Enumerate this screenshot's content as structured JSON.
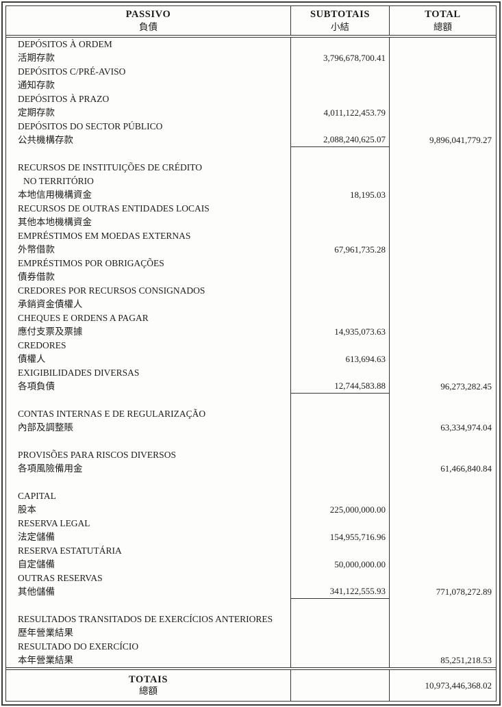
{
  "header": {
    "passivo_pt": "PASSIVO",
    "passivo_zh": "負債",
    "subtotais_pt": "SUBTOTAIS",
    "subtotais_zh": "小結",
    "total_pt": "TOTAL",
    "total_zh": "總額"
  },
  "rows": [
    {
      "label": "DEPÓSITOS À ORDEM"
    },
    {
      "label": "活期存款",
      "subtotal": "3,796,678,700.41"
    },
    {
      "label": "DEPÓSITOS C/PRÉ-AVISO"
    },
    {
      "label": "通知存款"
    },
    {
      "label": "DEPÓSITOS À PRAZO"
    },
    {
      "label": "定期存款",
      "subtotal": "4,011,122,453.79"
    },
    {
      "label": "DEPÓSITOS DO SECTOR PÚBLICO"
    },
    {
      "label": "公共機構存款",
      "subtotal": "2,088,240,625.07",
      "total": "9,896,041,779.27",
      "rule": true
    },
    {
      "spacer": true
    },
    {
      "label": "RECURSOS DE INSTITUIÇÕES DE CRÉDITO"
    },
    {
      "label": "NO TERRITÓRIO",
      "indent": true
    },
    {
      "label": "本地信用機構資金",
      "subtotal": "18,195.03"
    },
    {
      "label": "RECURSOS DE OUTRAS ENTIDADES LOCAIS"
    },
    {
      "label": "其他本地機構資金"
    },
    {
      "label": "EMPRÉSTIMOS EM MOEDAS EXTERNAS"
    },
    {
      "label": "外幣借款",
      "subtotal": "67,961,735.28"
    },
    {
      "label": "EMPRÉSTIMOS POR OBRIGAÇÕES"
    },
    {
      "label": "債券借款"
    },
    {
      "label": "CREDORES POR RECURSOS CONSIGNADOS"
    },
    {
      "label": "承銷資金債權人"
    },
    {
      "label": "CHEQUES E ORDENS A PAGAR"
    },
    {
      "label": "應付支票及票據",
      "subtotal": "14,935,073.63"
    },
    {
      "label": "CREDORES"
    },
    {
      "label": "債權人",
      "subtotal": "613,694.63"
    },
    {
      "label": "EXIGIBILIDADES DIVERSAS"
    },
    {
      "label": "各項負債",
      "subtotal": "12,744,583.88",
      "total": "96,273,282.45",
      "rule": true
    },
    {
      "spacer": true
    },
    {
      "label": "CONTAS INTERNAS E DE REGULARIZAÇÃO"
    },
    {
      "label": "內部及調整賬",
      "total": "63,334,974.04"
    },
    {
      "spacer": true
    },
    {
      "label": "PROVISÕES PARA RISCOS DIVERSOS"
    },
    {
      "label": "各項風險備用金",
      "total": "61,466,840.84"
    },
    {
      "spacer": true
    },
    {
      "label": "CAPITAL"
    },
    {
      "label": "股本",
      "subtotal": "225,000,000.00"
    },
    {
      "label": "RESERVA LEGAL"
    },
    {
      "label": "法定儲備",
      "subtotal": "154,955,716.96"
    },
    {
      "label": "RESERVA ESTATUTÁRIA"
    },
    {
      "label": "自定儲備",
      "subtotal": "50,000,000.00"
    },
    {
      "label": "OUTRAS RESERVAS"
    },
    {
      "label": "其他儲備",
      "subtotal": "341,122,555.93",
      "total": "771,078,272.89",
      "rule": true
    },
    {
      "spacer": true
    },
    {
      "label": "RESULTADOS TRANSITADOS DE EXERCÍCIOS ANTERIORES"
    },
    {
      "label": "歷年營業結果"
    },
    {
      "label": "RESULTADO DO EXERCÍCIO"
    },
    {
      "label": "本年營業結果",
      "total": "85,251,218.53"
    }
  ],
  "footer": {
    "totais_pt": "TOTAIS",
    "totais_zh": "總額",
    "grand_total": "10,973,446,368.02"
  },
  "colors": {
    "paper": "#fdfdfb",
    "ink": "#1c1c1c",
    "border": "#343434"
  }
}
